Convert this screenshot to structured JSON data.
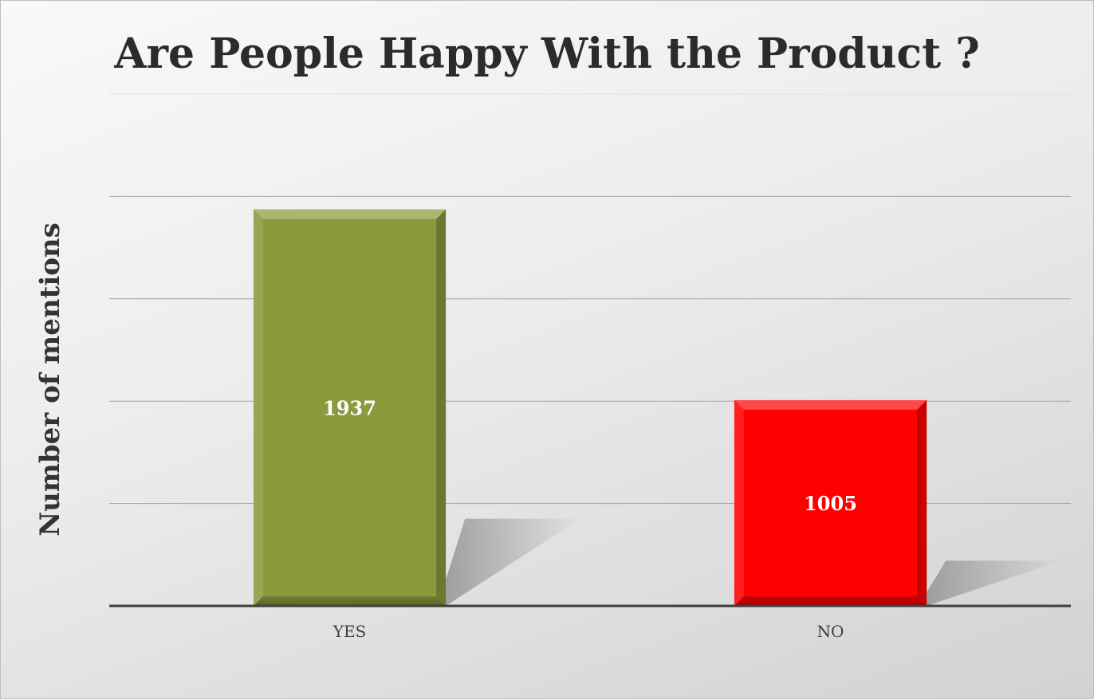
{
  "chart_data": {
    "type": "bar",
    "title": "Are People Happy With the Product ?",
    "xlabel": "",
    "ylabel": "Number of mentions",
    "categories": [
      "YES",
      "NO"
    ],
    "values": [
      1937,
      1005
    ],
    "ylim": [
      0,
      2500
    ],
    "grid": true,
    "legend": "none",
    "colors": [
      "#8a9b3e",
      "#ff0000"
    ],
    "data_labels": [
      "1937",
      "1005"
    ]
  }
}
